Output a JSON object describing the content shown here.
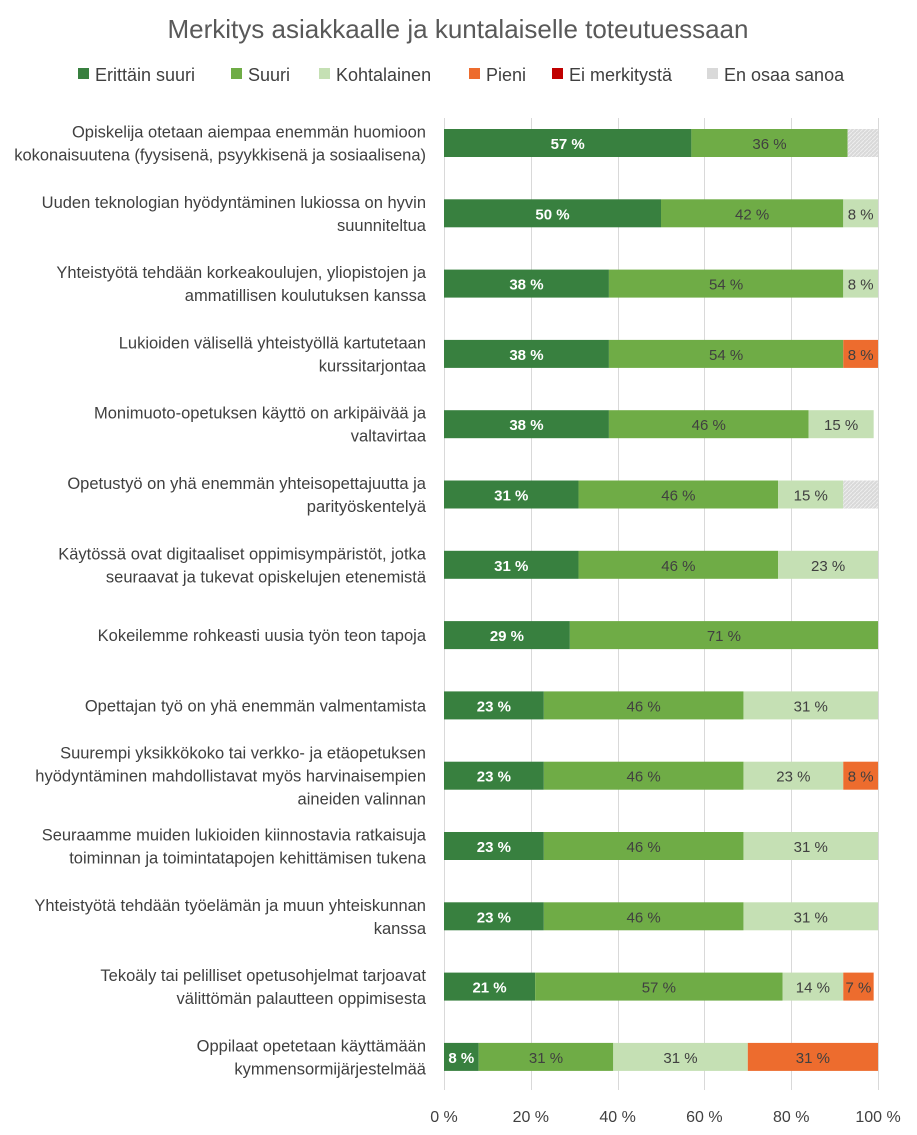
{
  "chart_data": {
    "type": "bar",
    "orientation": "horizontal",
    "stacked": true,
    "title": "Merkitys asiakkaalle ja kuntalaiselle toteutuessaan",
    "legend_position": "top",
    "xlim": [
      0,
      100
    ],
    "x_ticks": [
      "0 %",
      "20 %",
      "40 %",
      "60 %",
      "80 %",
      "100 %"
    ],
    "categories": [
      [
        "Opiskelija otetaan aiempaa enemmän huomioon",
        "kokonaisuutena (fyysisenä, psyykkisenä ja sosiaalisena)"
      ],
      [
        "Uuden teknologian hyödyntäminen lukiossa on hyvin",
        "suunniteltua"
      ],
      [
        "Yhteistyötä tehdään korkeakoulujen, yliopistojen ja",
        "ammatillisen koulutuksen kanssa"
      ],
      [
        "Lukioiden välisellä yhteistyöllä kartutetaan",
        "kurssitarjontaa"
      ],
      [
        "Monimuoto-opetuksen käyttö on arkipäivää ja",
        "valtavirtaa"
      ],
      [
        "Opetustyö on yhä enemmän yhteisopettajuutta ja",
        "parityöskentelyä"
      ],
      [
        "Käytössä ovat digitaaliset oppimisympäristöt, jotka",
        "seuraavat ja tukevat opiskelujen etenemistä"
      ],
      [
        "Kokeilemme rohkeasti uusia työn teon tapoja"
      ],
      [
        "Opettajan työ on yhä enemmän valmentamista"
      ],
      [
        "Suurempi yksikkökoko tai verkko- ja etäopetuksen",
        "hyödyntäminen mahdollistavat myös harvinaisempien",
        "aineiden valinnan"
      ],
      [
        "Seuraamme muiden lukioiden kiinnostavia ratkaisuja",
        "toiminnan ja toimintatapojen kehittämisen tukena"
      ],
      [
        "Yhteistyötä tehdään työelämän ja muun yhteiskunnan",
        "kanssa"
      ],
      [
        "Tekoäly tai pelilliset opetusohjelmat tarjoavat",
        "välittömän palautteen oppimisesta"
      ],
      [
        "Oppilaat opetetaan käyttämään",
        "kymmensormijärjestelmää"
      ]
    ],
    "series": [
      {
        "name": "Erittäin suuri",
        "color": "#38803f",
        "values": [
          57,
          50,
          38,
          38,
          38,
          31,
          31,
          29,
          23,
          23,
          23,
          23,
          21,
          8
        ]
      },
      {
        "name": "Suuri",
        "color": "#6fac46",
        "values": [
          36,
          42,
          54,
          54,
          46,
          46,
          46,
          71,
          46,
          46,
          46,
          46,
          57,
          31
        ]
      },
      {
        "name": "Kohtalainen",
        "color": "#c5e0b4",
        "values": [
          0,
          8,
          8,
          0,
          15,
          15,
          23,
          0,
          31,
          23,
          31,
          31,
          14,
          31
        ]
      },
      {
        "name": "Pieni",
        "color": "#ed6c2e",
        "values": [
          0,
          0,
          0,
          8,
          0,
          0,
          0,
          0,
          0,
          8,
          0,
          0,
          7,
          31
        ]
      },
      {
        "name": "Ei merkitystä",
        "color": "#c00000",
        "values": [
          0,
          0,
          0,
          0,
          0,
          0,
          0,
          0,
          0,
          0,
          0,
          0,
          0,
          0
        ]
      },
      {
        "name": "En osaa sanoa",
        "color": "#d9d9d9",
        "values": [
          7,
          0,
          0,
          0,
          0,
          8,
          0,
          0,
          0,
          0,
          0,
          0,
          0,
          0
        ]
      }
    ],
    "data_labels": [
      [
        "57 %",
        "36 %",
        "",
        "",
        "",
        ""
      ],
      [
        "50 %",
        "42 %",
        "8 %",
        "",
        "",
        ""
      ],
      [
        "38 %",
        "54 %",
        "8 %",
        "",
        "",
        ""
      ],
      [
        "38 %",
        "54 %",
        "",
        "8 %",
        "",
        ""
      ],
      [
        "38 %",
        "46 %",
        "15 %",
        "",
        "",
        ""
      ],
      [
        "31 %",
        "46 %",
        "15 %",
        "",
        "",
        ""
      ],
      [
        "31 %",
        "46 %",
        "23 %",
        "",
        "",
        ""
      ],
      [
        "29 %",
        "71 %",
        "",
        "",
        "",
        ""
      ],
      [
        "23 %",
        "46 %",
        "31 %",
        "",
        "",
        ""
      ],
      [
        "23 %",
        "46 %",
        "23 %",
        "8 %",
        "",
        ""
      ],
      [
        "23 %",
        "46 %",
        "31 %",
        "",
        "",
        ""
      ],
      [
        "23 %",
        "46 %",
        "31 %",
        "",
        "",
        ""
      ],
      [
        "21 %",
        "57 %",
        "14 %",
        "7 %",
        "",
        ""
      ],
      [
        "8 %",
        "31 %",
        "31 %",
        "31 %",
        "",
        ""
      ]
    ],
    "label_colors": [
      "#ffffff",
      "#404040",
      "#404040",
      "#404040",
      "#ffffff",
      "#404040"
    ]
  }
}
